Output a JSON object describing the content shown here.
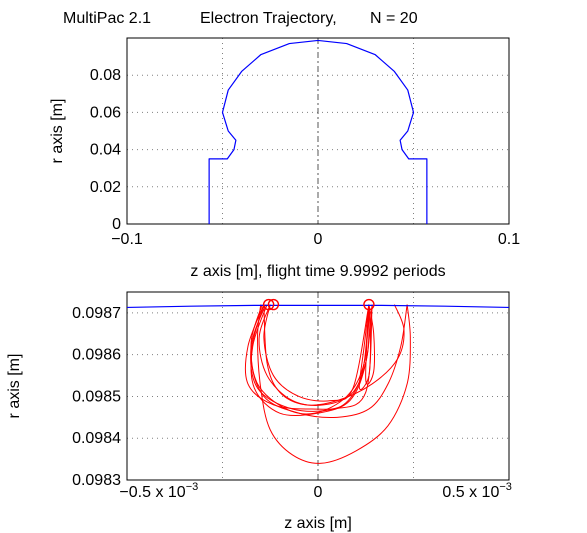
{
  "header": {
    "app_title": "MultiPac 2.1",
    "plot_title": "Electron Trajectory,",
    "n_label": "N = 20"
  },
  "chart_data": [
    {
      "type": "line",
      "xlabel": "z axis [m],  flight time 9.9992 periods",
      "ylabel": "r axis [m]",
      "xlim": [
        -0.1,
        0.1
      ],
      "ylim": [
        0,
        0.1
      ],
      "x_ticks": [
        "-0.1",
        "0",
        "0.1"
      ],
      "y_ticks": [
        "0",
        "0.02",
        "0.04",
        "0.06",
        "0.08"
      ],
      "grid": true,
      "series": [
        {
          "color": "#0000ff",
          "x": [
            -0.057,
            -0.057,
            -0.0475,
            -0.044,
            -0.043,
            -0.047,
            -0.05,
            -0.047,
            -0.04,
            -0.03,
            -0.015,
            0,
            0.015,
            0.03,
            0.04,
            0.047,
            0.05,
            0.047,
            0.043,
            0.044,
            0.0475,
            0.057,
            0.057
          ],
          "y": [
            0,
            0.035,
            0.035,
            0.04,
            0.045,
            0.05,
            0.06,
            0.072,
            0.082,
            0.091,
            0.097,
            0.0987,
            0.097,
            0.091,
            0.082,
            0.072,
            0.06,
            0.05,
            0.045,
            0.04,
            0.035,
            0.035,
            0
          ]
        }
      ]
    },
    {
      "type": "line",
      "xlabel": "z axis [m]",
      "ylabel": "r axis [m]",
      "xlim": [
        -0.0006,
        0.0006
      ],
      "ylim": [
        0.0983,
        0.09875
      ],
      "x_ticks": [
        {
          "mantissa": "−0.5 x 10",
          "exp": "−3",
          "value": -0.0005
        },
        {
          "mantissa": "0",
          "exp": "",
          "value": 0
        },
        {
          "mantissa": "0.5 x 10",
          "exp": "−3",
          "value": 0.0005
        }
      ],
      "y_ticks": [
        "0.0983",
        "0.0984",
        "0.0985",
        "0.0986",
        "0.0987"
      ],
      "grid": true,
      "boundary": {
        "color": "#0000ff",
        "x": [
          -0.0006,
          -0.0004,
          -0.0002,
          0,
          0.0002,
          0.0004,
          0.0006
        ],
        "y": [
          0.098713,
          0.098716,
          0.098718,
          0.098718,
          0.098718,
          0.098716,
          0.098713
        ]
      },
      "trajectories": {
        "color": "#ff0000",
        "paths": [
          {
            "x": [
              -0.00017,
              -0.00022,
              -0.00022,
              -0.00014,
              -2e-05,
              8e-05,
              0.00014,
              0.00016
            ],
            "y": [
              0.09872,
              0.09862,
              0.09853,
              0.09848,
              0.09847,
              0.09848,
              0.09856,
              0.09872
            ]
          },
          {
            "x": [
              -0.00016,
              -0.000205,
              -0.0002,
              -0.00012,
              0,
              0.0001,
              0.00015,
              0.00017
            ],
            "y": [
              0.09872,
              0.09862,
              0.09852,
              0.09846,
              0.09846,
              0.09849,
              0.09858,
              0.09872
            ]
          },
          {
            "x": [
              -0.00015,
              -0.000185,
              -0.00016,
              -8e-05,
              2e-05,
              0.00011,
              0.000155,
              0.00016
            ],
            "y": [
              0.09872,
              0.09864,
              0.09855,
              0.09849,
              0.09848,
              0.09851,
              0.0986,
              0.09872
            ]
          },
          {
            "x": [
              -0.000175,
              -0.00021,
              -0.00019,
              -0.0001,
              -1e-05,
              9e-05,
              0.000145,
              0.00016
            ],
            "y": [
              0.09872,
              0.09863,
              0.09853,
              0.09847,
              0.09846,
              0.0985,
              0.09858,
              0.09872
            ]
          },
          {
            "x": [
              0.00016,
              0.000145,
              0.00013,
              0.00016,
              0.000165,
              0.00016
            ],
            "y": [
              0.09872,
              0.09862,
              0.09852,
              0.09855,
              0.09865,
              0.09872
            ]
          },
          {
            "x": [
              0.00016,
              0.000175,
              0.000175,
              0.00015,
              0.00016
            ],
            "y": [
              0.09872,
              0.09865,
              0.09856,
              0.09854,
              0.09872
            ]
          },
          {
            "x": [
              -0.00015,
              -0.00017,
              -0.00014,
              -6e-05,
              4e-05,
              0.00011,
              0.00016
            ],
            "y": [
              0.09872,
              0.09864,
              0.09855,
              0.0985,
              0.09849,
              0.09852,
              0.09872
            ]
          },
          {
            "x": [
              -0.000165,
              -0.00021,
              -0.00019,
              -8e-05,
              5e-05,
              0.00015,
              0.00017
            ],
            "y": [
              0.09872,
              0.09862,
              0.09852,
              0.09847,
              0.09847,
              0.09851,
              0.09872
            ]
          },
          {
            "x": [
              0.00024,
              0.00027,
              0.00025,
              0.00017,
              6e-05,
              -4e-05,
              -0.00012,
              -0.00016,
              -0.00017
            ],
            "y": [
              0.09872,
              0.09866,
              0.09859,
              0.09853,
              0.09849,
              0.09848,
              0.09851,
              0.09858,
              0.09872
            ]
          },
          {
            "x": [
              -0.00017,
              -0.00021,
              -0.00017,
              -6e-05,
              6e-05,
              0.00016,
              0.00022,
              0.00026,
              0.00028
            ],
            "y": [
              0.09872,
              0.0986,
              0.0985,
              0.09846,
              0.09845,
              0.09847,
              0.09853,
              0.09862,
              0.09872
            ]
          },
          {
            "x": [
              0.00028,
              0.00029,
              0.00028,
              0.00022,
              0.00012,
              1e-05,
              -8e-05,
              -0.00015,
              -0.00018,
              -0.00019,
              -0.00018
            ],
            "y": [
              0.09872,
              0.09864,
              0.09853,
              0.09843,
              0.09837,
              0.09834,
              0.09836,
              0.09842,
              0.09852,
              0.09864,
              0.09872
            ]
          }
        ],
        "markers": [
          {
            "x": -0.000155,
            "y": 0.09872
          },
          {
            "x": -0.00014,
            "y": 0.09872
          },
          {
            "x": 0.00016,
            "y": 0.09872
          }
        ]
      }
    }
  ]
}
